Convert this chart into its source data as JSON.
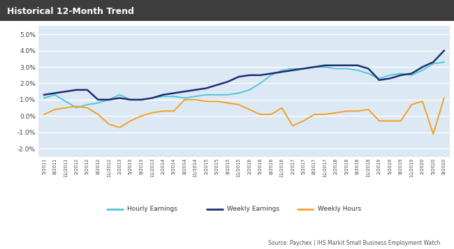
{
  "title": "Historical 12-Month Trend",
  "title_bg": "#3d3d3d",
  "title_color": "#ffffff",
  "source_text": "Source: Paychex | IHS Markit Small Business Employment Watch",
  "ylim": [
    -2.5,
    5.5
  ],
  "yticks": [
    -2.0,
    -1.0,
    0.0,
    1.0,
    2.0,
    3.0,
    4.0,
    5.0
  ],
  "plot_bg": "#dce9f5",
  "fig_bg": "#ffffff",
  "grid_color": "#ffffff",
  "colors": {
    "hourly": "#4ec8d8",
    "weekly": "#1e2d6e",
    "hours": "#f5a020"
  },
  "x_labels": [
    "5/2011",
    "8/2011",
    "11/2011",
    "2/2012",
    "5/2012",
    "8/2012",
    "11/2012",
    "2/2013",
    "5/2013",
    "8/2013",
    "11/2013",
    "2/2014",
    "5/2014",
    "8/2014",
    "11/2014",
    "2/2015",
    "5/2015",
    "8/2015",
    "11/2015",
    "2/2016",
    "5/2016",
    "8/2016",
    "11/2016",
    "2/2017",
    "5/2017",
    "8/2017",
    "11/2017",
    "2/2018",
    "5/2018",
    "8/2018",
    "11/2018",
    "2/2019",
    "5/2019",
    "8/2019",
    "11/2019",
    "2/2020",
    "5/2020",
    "8/2020"
  ],
  "hourly_earnings": [
    1.1,
    1.3,
    0.9,
    0.5,
    0.7,
    0.8,
    1.0,
    1.3,
    1.0,
    1.0,
    1.1,
    1.2,
    1.2,
    1.1,
    1.2,
    1.3,
    1.3,
    1.3,
    1.4,
    1.6,
    2.0,
    2.5,
    2.8,
    2.9,
    2.9,
    3.0,
    3.0,
    2.9,
    2.9,
    2.8,
    2.6,
    2.3,
    2.5,
    2.6,
    2.5,
    2.8,
    3.2,
    3.3
  ],
  "weekly_earnings": [
    1.3,
    1.4,
    1.5,
    1.6,
    1.6,
    1.0,
    1.0,
    1.1,
    1.0,
    1.0,
    1.1,
    1.3,
    1.4,
    1.5,
    1.6,
    1.7,
    1.9,
    2.1,
    2.4,
    2.5,
    2.5,
    2.6,
    2.7,
    2.8,
    2.9,
    3.0,
    3.1,
    3.1,
    3.1,
    3.1,
    2.9,
    2.2,
    2.3,
    2.5,
    2.6,
    3.0,
    3.3,
    4.0
  ],
  "weekly_hours": [
    0.1,
    0.4,
    0.5,
    0.6,
    0.5,
    0.1,
    -0.5,
    -0.7,
    -0.3,
    0.0,
    0.2,
    0.3,
    0.3,
    1.0,
    1.0,
    0.9,
    0.9,
    0.8,
    0.7,
    0.4,
    0.1,
    0.1,
    0.5,
    -0.6,
    -0.3,
    0.1,
    0.1,
    0.2,
    0.3,
    0.3,
    0.4,
    -0.3,
    -0.3,
    -0.3,
    0.7,
    0.9,
    -1.1,
    1.1
  ],
  "legend_entries": [
    "Hourly Earnings",
    "Weekly Earnings",
    "Weekly Hours"
  ]
}
